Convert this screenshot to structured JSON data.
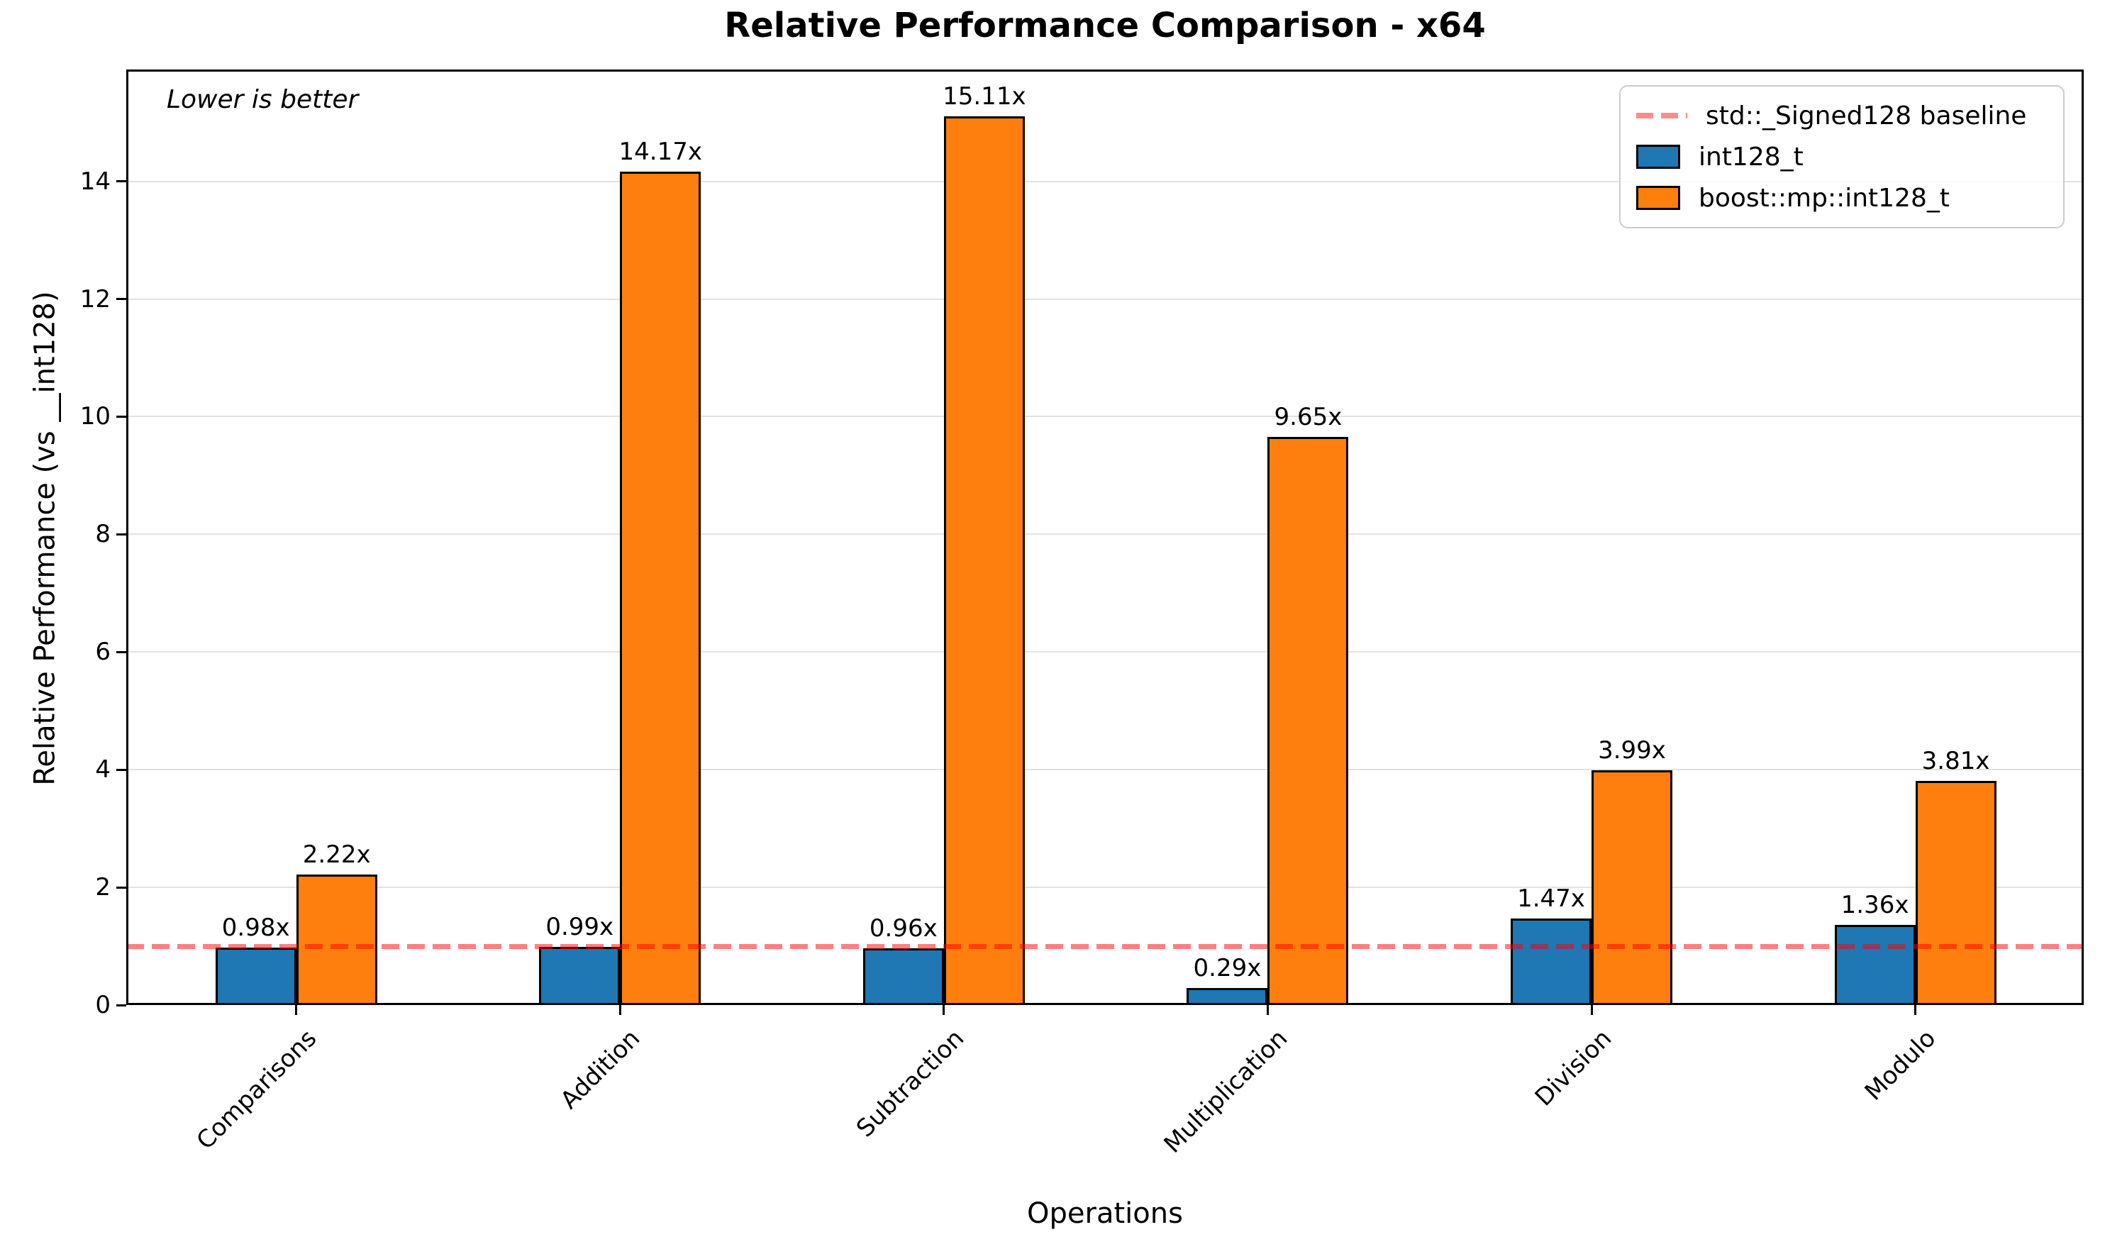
{
  "chart_data": {
    "type": "bar",
    "title": "Relative Performance Comparison - x64",
    "xlabel": "Operations",
    "ylabel": "Relative Performance (vs __int128)",
    "annotation": "Lower is better",
    "categories": [
      "Comparisons",
      "Addition",
      "Subtraction",
      "Multiplication",
      "Division",
      "Modulo"
    ],
    "series": [
      {
        "name": "int128_t",
        "color": "#1f77b4",
        "values": [
          0.98,
          0.99,
          0.96,
          0.29,
          1.47,
          1.36
        ],
        "labels": [
          "0.98x",
          "0.99x",
          "0.96x",
          "0.29x",
          "1.47x",
          "1.36x"
        ]
      },
      {
        "name": "boost::mp::int128_t",
        "color": "#ff7f0e",
        "values": [
          2.22,
          14.17,
          15.11,
          9.65,
          3.99,
          3.81
        ],
        "labels": [
          "2.22x",
          "14.17x",
          "15.11x",
          "9.65x",
          "3.99x",
          "3.81x"
        ]
      }
    ],
    "baseline": {
      "value": 1.0,
      "label": "std::_Signed128 baseline",
      "color": "#ff0000"
    },
    "yticks": [
      0,
      2,
      4,
      6,
      8,
      10,
      12,
      14
    ],
    "ytick_labels": [
      "0",
      "2",
      "4",
      "6",
      "8",
      "10",
      "12",
      "14"
    ],
    "ylim": [
      0,
      15.9
    ],
    "grid": true,
    "legend_position": "upper right",
    "bar_edge_color": "#000000",
    "background_color": "#ffffff"
  }
}
